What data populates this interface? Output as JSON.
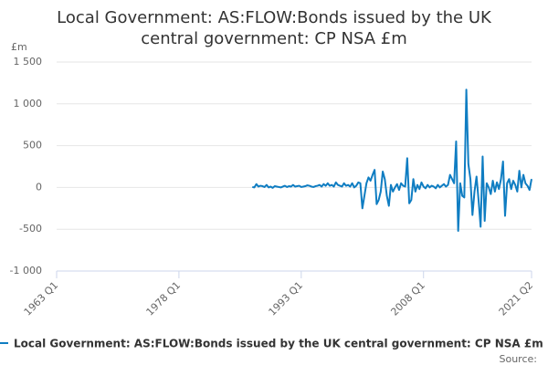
{
  "chart_data": {
    "type": "line",
    "title": "Local Government: AS:FLOW:Bonds issued by the UK central government: CP NSA £m",
    "y_label": "£m",
    "source": "Source:",
    "categories": [
      "1963 Q1",
      null,
      null,
      null,
      null,
      null,
      null,
      null,
      null,
      null,
      null,
      null,
      null,
      null,
      null,
      null,
      null,
      null,
      null,
      null,
      null,
      null,
      null,
      null,
      null,
      null,
      null,
      null,
      null,
      null,
      null,
      null,
      null,
      null,
      null,
      null,
      null,
      null,
      null,
      null,
      null,
      null,
      null,
      null,
      null,
      null,
      null,
      null,
      null,
      null,
      null,
      null,
      null,
      null,
      null,
      null,
      null,
      null,
      null,
      null,
      "1978 Q1",
      null,
      null,
      null,
      null,
      null,
      null,
      null,
      null,
      null,
      null,
      null,
      null,
      null,
      null,
      null,
      null,
      null,
      null,
      null,
      null,
      null,
      null,
      null,
      null,
      null,
      null,
      null,
      null,
      null,
      null,
      null,
      null,
      null,
      null,
      null,
      null,
      null,
      null,
      null,
      null,
      null,
      null,
      null,
      null,
      null,
      null,
      null,
      null,
      null,
      null,
      null,
      null,
      null,
      null,
      null,
      null,
      null,
      null,
      null,
      "1993 Q1",
      null,
      null,
      null,
      null,
      null,
      null,
      null,
      null,
      null,
      null,
      null,
      null,
      null,
      null,
      null,
      null,
      null,
      null,
      null,
      null,
      null,
      null,
      null,
      null,
      null,
      null,
      null,
      null,
      null,
      null,
      null,
      null,
      null,
      null,
      null,
      null,
      null,
      null,
      null,
      null,
      null,
      null,
      null,
      null,
      null,
      null,
      null,
      null,
      null,
      null,
      null,
      null,
      null,
      null,
      null,
      null,
      null,
      null,
      null,
      "2008 Q1",
      null,
      null,
      null,
      null,
      null,
      null,
      null,
      null,
      null,
      null,
      null,
      null,
      null,
      null,
      null,
      null,
      null,
      null,
      null,
      null,
      null,
      null,
      null,
      null,
      null,
      null,
      null,
      null,
      null,
      null,
      null,
      null,
      null,
      null,
      null,
      null,
      null,
      null,
      null,
      null,
      null,
      null,
      null,
      null,
      null,
      null,
      null,
      null,
      null,
      null,
      null,
      null,
      "2021 Q2"
    ],
    "series": [
      {
        "name": "Local Government: AS:FLOW:Bonds issued by the UK central government: CP NSA £m",
        "color": "#0f7dc2",
        "values": [
          null,
          null,
          null,
          null,
          null,
          null,
          null,
          null,
          null,
          null,
          null,
          null,
          null,
          null,
          null,
          null,
          null,
          null,
          null,
          null,
          null,
          null,
          null,
          null,
          null,
          null,
          null,
          null,
          null,
          null,
          null,
          null,
          null,
          null,
          null,
          null,
          null,
          null,
          null,
          null,
          null,
          null,
          null,
          null,
          null,
          null,
          null,
          null,
          null,
          null,
          null,
          null,
          null,
          null,
          null,
          null,
          null,
          null,
          null,
          null,
          null,
          null,
          null,
          null,
          null,
          null,
          null,
          null,
          null,
          null,
          null,
          null,
          null,
          null,
          null,
          null,
          null,
          null,
          null,
          null,
          null,
          null,
          null,
          null,
          null,
          null,
          null,
          null,
          null,
          null,
          null,
          null,
          null,
          null,
          null,
          null,
          5,
          0,
          40,
          10,
          20,
          15,
          5,
          30,
          0,
          10,
          -5,
          15,
          10,
          5,
          0,
          10,
          20,
          5,
          15,
          10,
          30,
          10,
          15,
          20,
          5,
          10,
          15,
          25,
          20,
          10,
          5,
          15,
          20,
          30,
          10,
          40,
          20,
          50,
          20,
          30,
          10,
          60,
          30,
          20,
          10,
          50,
          20,
          30,
          10,
          50,
          0,
          20,
          60,
          50,
          -250,
          -100,
          50,
          120,
          80,
          150,
          210,
          -200,
          -150,
          -50,
          190,
          100,
          -100,
          -220,
          30,
          -50,
          0,
          40,
          -30,
          50,
          20,
          10,
          350,
          -190,
          -150,
          100,
          -50,
          30,
          -20,
          60,
          10,
          -10,
          30,
          0,
          20,
          10,
          -10,
          30,
          0,
          20,
          40,
          10,
          30,
          150,
          100,
          50,
          550,
          -520,
          50,
          -100,
          -120,
          1170,
          280,
          100,
          -330,
          -50,
          130,
          -150,
          -470,
          370,
          -400,
          50,
          0,
          -80,
          80,
          -50,
          60,
          -20,
          100,
          310,
          -340,
          50,
          100,
          -20,
          80,
          30,
          -50,
          200,
          0,
          150,
          50,
          20,
          -30,
          100
        ]
      }
    ],
    "ylim": [
      -1000,
      1500
    ],
    "yticks": [
      {
        "value": -1000,
        "label": "-1 000"
      },
      -500,
      0,
      500,
      {
        "value": 1000,
        "label": "1 000"
      },
      {
        "value": 1500,
        "label": "1 500"
      }
    ],
    "grid": true
  }
}
